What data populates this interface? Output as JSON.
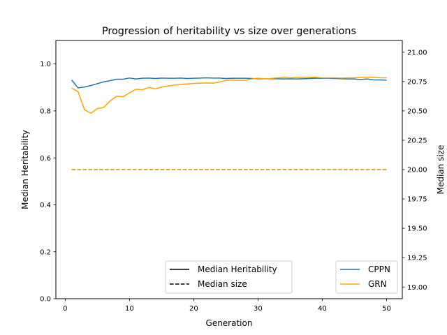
{
  "chart_data": {
    "type": "line",
    "title": "Progression of heritability vs size over generations",
    "xlabel": "Generation",
    "ylabel": "Median Heritability",
    "ylabel_right": "Median size",
    "xlim": [
      -1.45,
      52.45
    ],
    "ylim": [
      0.0,
      1.1
    ],
    "ylim_right": [
      18.9,
      21.1
    ],
    "x_ticks": [
      0,
      10,
      20,
      30,
      40,
      50
    ],
    "y_ticks": [
      0.0,
      0.2,
      0.4,
      0.6,
      0.8,
      1.0
    ],
    "y_ticks_right": [
      19.0,
      19.25,
      19.5,
      19.75,
      20.0,
      20.25,
      20.5,
      20.75,
      21.0
    ],
    "x_tick_labels": [
      "0",
      "10",
      "20",
      "30",
      "40",
      "50"
    ],
    "y_tick_labels": [
      "0.0",
      "0.2",
      "0.4",
      "0.6",
      "0.8",
      "1.0"
    ],
    "y_tick_labels_right": [
      "19.00",
      "19.25",
      "19.50",
      "19.75",
      "20.00",
      "20.25",
      "20.50",
      "20.75",
      "21.00"
    ],
    "grid": false,
    "x": [
      1,
      2,
      3,
      4,
      5,
      6,
      7,
      8,
      9,
      10,
      11,
      12,
      13,
      14,
      15,
      16,
      17,
      18,
      19,
      20,
      21,
      22,
      23,
      24,
      25,
      26,
      27,
      28,
      29,
      30,
      31,
      32,
      33,
      34,
      35,
      36,
      37,
      38,
      39,
      40,
      41,
      42,
      43,
      44,
      45,
      46,
      47,
      48,
      49,
      50
    ],
    "series": [
      {
        "name": "CPPN",
        "legend_group": "Median Heritability",
        "axis": "left",
        "style": "solid",
        "color": "#1f77b4",
        "values": [
          0.932,
          0.898,
          0.902,
          0.908,
          0.916,
          0.924,
          0.929,
          0.935,
          0.935,
          0.94,
          0.936,
          0.939,
          0.94,
          0.938,
          0.94,
          0.939,
          0.939,
          0.94,
          0.938,
          0.939,
          0.94,
          0.941,
          0.94,
          0.94,
          0.938,
          0.939,
          0.939,
          0.939,
          0.938,
          0.937,
          0.937,
          0.937,
          0.937,
          0.936,
          0.937,
          0.936,
          0.937,
          0.938,
          0.939,
          0.939,
          0.939,
          0.938,
          0.937,
          0.936,
          0.936,
          0.934,
          0.936,
          0.932,
          0.932,
          0.931
        ]
      },
      {
        "name": "GRN",
        "legend_group": "Median Heritability",
        "axis": "left",
        "style": "solid",
        "color": "#ffa500",
        "values": [
          0.897,
          0.882,
          0.805,
          0.79,
          0.81,
          0.815,
          0.843,
          0.862,
          0.86,
          0.877,
          0.892,
          0.89,
          0.9,
          0.894,
          0.902,
          0.906,
          0.91,
          0.913,
          0.915,
          0.917,
          0.918,
          0.919,
          0.918,
          0.923,
          0.93,
          0.931,
          0.93,
          0.93,
          0.936,
          0.939,
          0.937,
          0.938,
          0.941,
          0.943,
          0.941,
          0.943,
          0.942,
          0.943,
          0.943,
          0.941,
          0.941,
          0.941,
          0.94,
          0.941,
          0.941,
          0.943,
          0.944,
          0.943,
          0.941,
          0.941
        ]
      },
      {
        "name": "CPPN",
        "legend_group": "Median size",
        "axis": "right",
        "style": "dashed",
        "color": "#1f77b4",
        "values": [
          20,
          20,
          20,
          20,
          20,
          20,
          20,
          20,
          20,
          20,
          20,
          20,
          20,
          20,
          20,
          20,
          20,
          20,
          20,
          20,
          20,
          20,
          20,
          20,
          20,
          20,
          20,
          20,
          20,
          20,
          20,
          20,
          20,
          20,
          20,
          20,
          20,
          20,
          20,
          20,
          20,
          20,
          20,
          20,
          20,
          20,
          20,
          20,
          20,
          20
        ]
      },
      {
        "name": "GRN",
        "legend_group": "Median size",
        "axis": "right",
        "style": "dashed",
        "color": "#ffa500",
        "values": [
          20,
          20,
          20,
          20,
          20,
          20,
          20,
          20,
          20,
          20,
          20,
          20,
          20,
          20,
          20,
          20,
          20,
          20,
          20,
          20,
          20,
          20,
          20,
          20,
          20,
          20,
          20,
          20,
          20,
          20,
          20,
          20,
          20,
          20,
          20,
          20,
          20,
          20,
          20,
          20,
          20,
          20,
          20,
          20,
          20,
          20,
          20,
          20,
          20,
          20
        ]
      }
    ],
    "legend_style": {
      "placement": "lower-center",
      "entries": [
        {
          "label": "Median Heritability",
          "style": "solid",
          "color": "#000000"
        },
        {
          "label": "Median size",
          "style": "dashed",
          "color": "#000000"
        }
      ]
    },
    "legend_series": {
      "placement": "lower-right",
      "entries": [
        {
          "label": "CPPN",
          "color": "#1f77b4"
        },
        {
          "label": "GRN",
          "color": "#ffa500"
        }
      ]
    }
  }
}
